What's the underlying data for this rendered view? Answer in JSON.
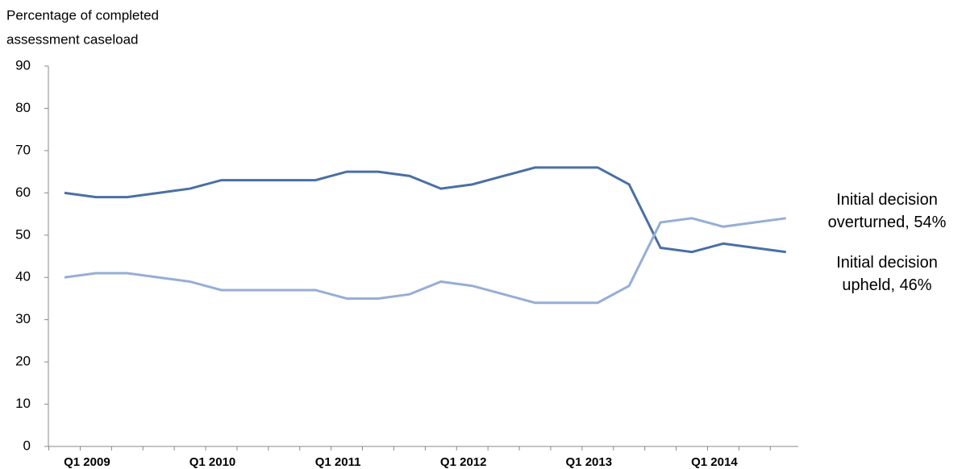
{
  "chart_data": {
    "type": "line",
    "y_axis_label": [
      "Percentage of completed",
      "assessment caseload"
    ],
    "categories": [
      null,
      "Q1 2009",
      null,
      null,
      null,
      "Q1 2010",
      null,
      null,
      null,
      "Q1 2011",
      null,
      null,
      null,
      "Q1 2012",
      null,
      null,
      null,
      "Q1 2013",
      null,
      null,
      null,
      "Q1 2014",
      null,
      null
    ],
    "series": [
      {
        "name": "Initial decision upheld",
        "color": "#4a6fa5",
        "values": [
          60,
          59,
          59,
          60,
          61,
          63,
          63,
          63,
          63,
          65,
          65,
          64,
          61,
          62,
          64,
          66,
          66,
          66,
          62,
          47,
          46,
          48,
          47,
          46
        ]
      },
      {
        "name": "Initial decision overturned",
        "color": "#96aed6",
        "values": [
          40,
          41,
          41,
          40,
          39,
          37,
          37,
          37,
          37,
          35,
          35,
          36,
          39,
          38,
          36,
          34,
          34,
          34,
          38,
          53,
          54,
          52,
          53,
          54
        ]
      }
    ],
    "annotations": [
      {
        "series": 1,
        "lines": [
          "Initial decision",
          "overturned, 54%"
        ]
      },
      {
        "series": 0,
        "lines": [
          "Initial decision",
          "upheld, 46%"
        ]
      }
    ],
    "ylim": [
      0,
      90
    ],
    "yticks": [
      0,
      10,
      20,
      30,
      40,
      50,
      60,
      70,
      80,
      90
    ],
    "grid": false
  }
}
